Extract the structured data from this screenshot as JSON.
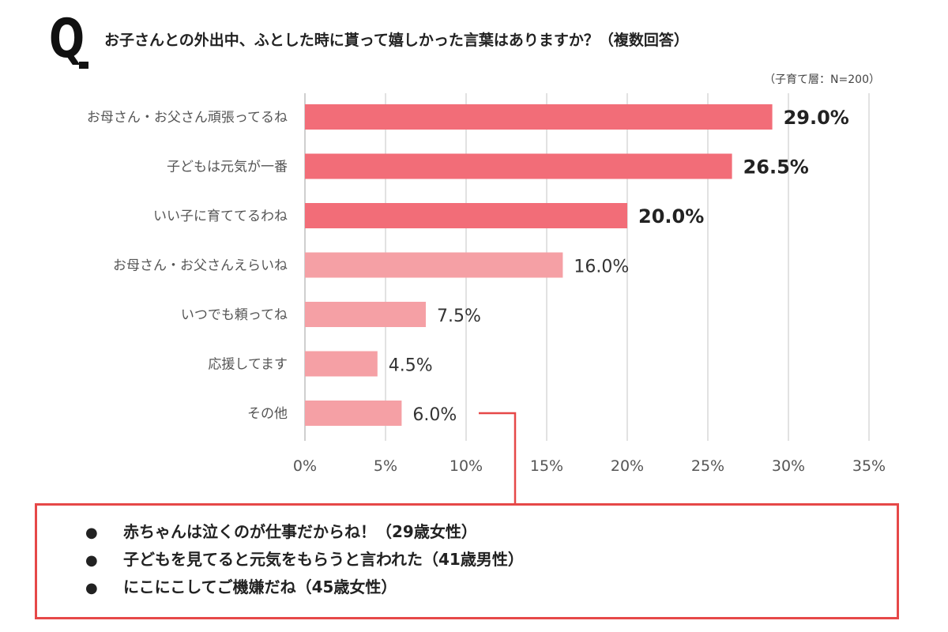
{
  "header": {
    "q_label": "Q",
    "title": "お子さんとの外出中、ふとした時に貰って嬉しかった言葉はありますか？（複数回答）",
    "sample_note": "（子育て層：N=200）"
  },
  "colors": {
    "bar_top3": "#f26d78",
    "bar_rest": "#f5a0a5",
    "callout": "#e64848",
    "grid": "#d9d9d9"
  },
  "chart_data": {
    "type": "bar",
    "orientation": "horizontal",
    "categories": [
      "お母さん・お父さん頑張ってるね",
      "子どもは元気が一番",
      "いい子に育ててるわね",
      "お母さん・お父さんえらいね",
      "いつでも頼ってね",
      "応援してます",
      "その他"
    ],
    "values": [
      29.0,
      26.5,
      20.0,
      16.0,
      7.5,
      4.5,
      6.0
    ],
    "value_labels": [
      "29.0%",
      "26.5%",
      "20.0%",
      "16.0%",
      "7.5%",
      "4.5%",
      "6.0%"
    ],
    "xlim": [
      0,
      35
    ],
    "x_ticks": [
      "0%",
      "5%",
      "10%",
      "15%",
      "20%",
      "25%",
      "30%",
      "35%"
    ],
    "grid": true,
    "unit": "%"
  },
  "callout": {
    "comments": [
      "赤ちゃんは泣くのが仕事だからね！（29歳女性）",
      "子どもを見てると元気をもらうと言われた（41歳男性）",
      "にこにこしてご機嫌だね（45歳女性）"
    ],
    "bullet": "●"
  }
}
